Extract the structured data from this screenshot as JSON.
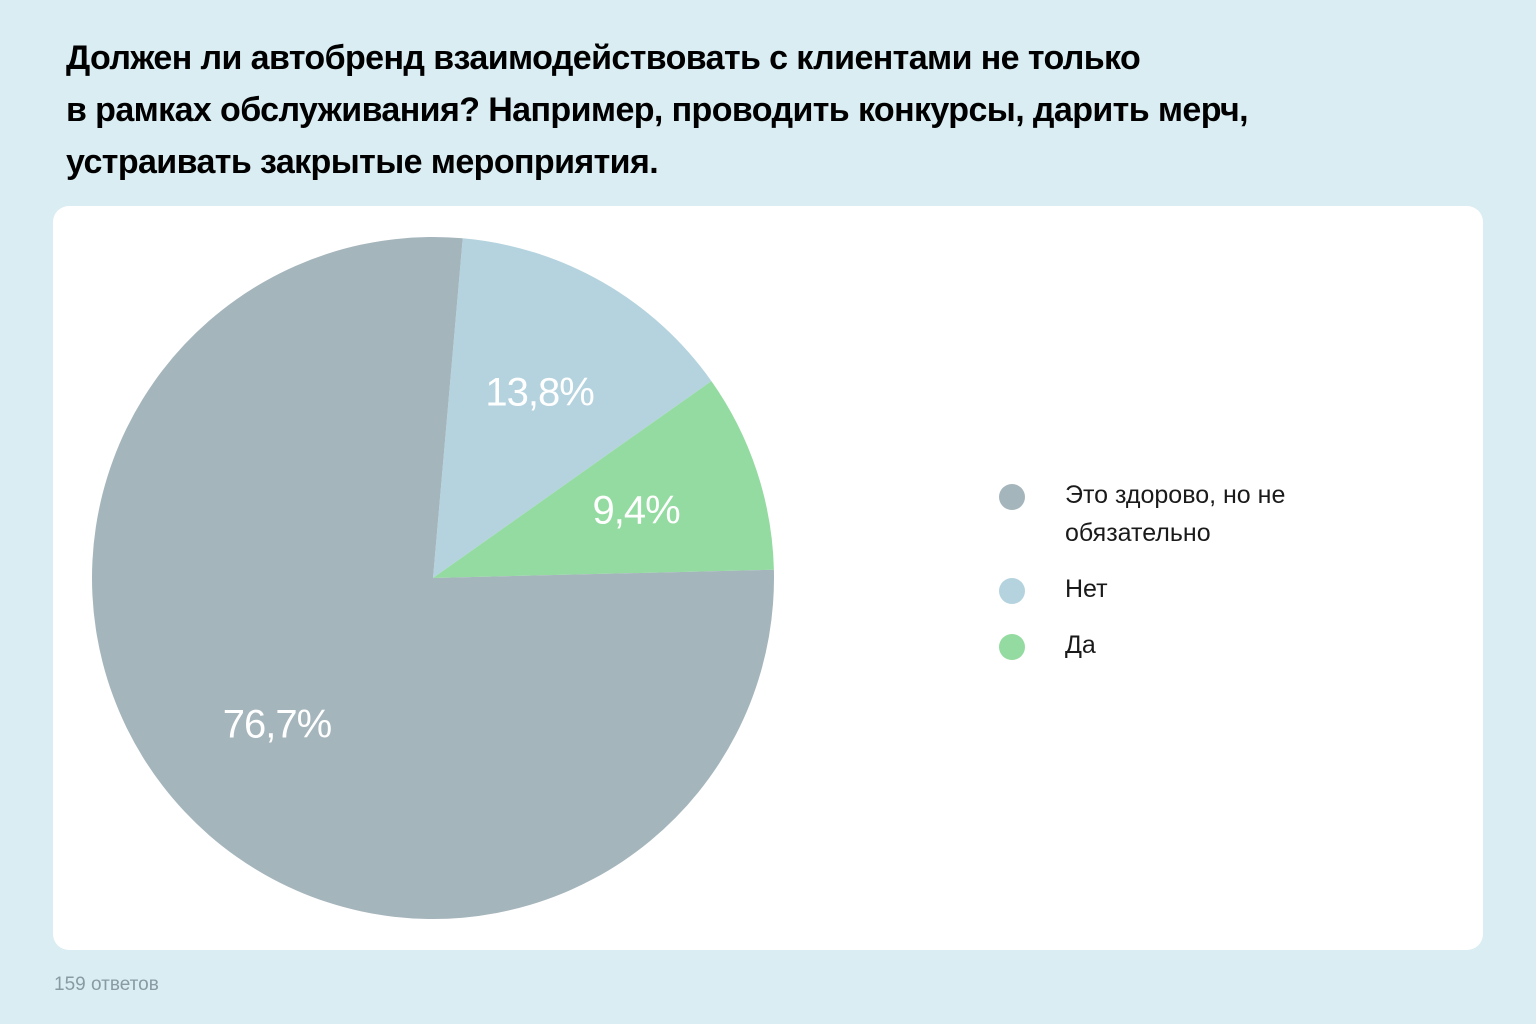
{
  "colors": {
    "background": "#d9edf3",
    "card": "#ffffff",
    "title_text": "#000000"
  },
  "title": "Должен ли автобренд взаимодействовать с клиентами не только\nв рамках обслуживания? Например, проводить конкурсы, дарить мерч,\nустраивать закрытые мероприятия.",
  "footer": {
    "responses": "159 ответов"
  },
  "chart_data": {
    "type": "pie",
    "title": "Должен ли автобренд взаимодействовать с клиентами не только в рамках обслуживания? Например, проводить конкурсы, дарить мерч, устраивать закрытые мероприятия.",
    "legend_position": "right",
    "slices": [
      {
        "label": "Это здорово, но не обязательно",
        "value": 76.7,
        "display": "76,7%",
        "color": "#a5b5bc"
      },
      {
        "label": "Нет",
        "value": 13.8,
        "display": "13,8%",
        "color": "#b4d3de"
      },
      {
        "label": "Да",
        "value": 9.4,
        "display": "9,4%",
        "color": "#93dba0"
      }
    ]
  }
}
